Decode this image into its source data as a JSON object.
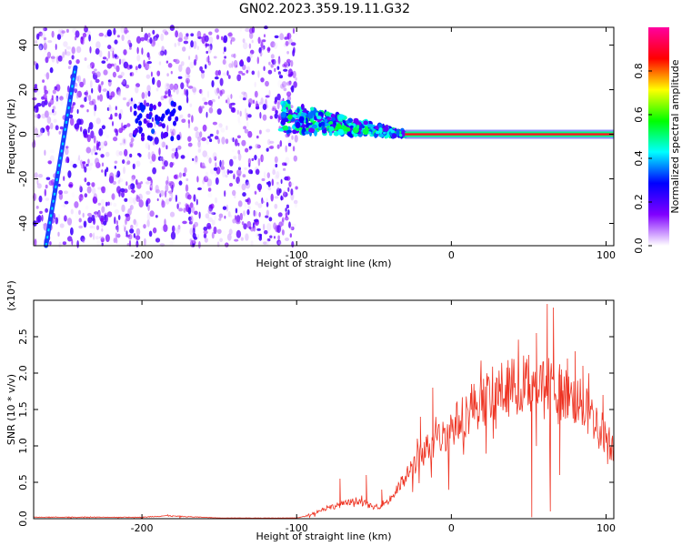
{
  "chart_data": [
    {
      "type": "heatmap",
      "title": "GN02.2023.359.19.11.G32",
      "xlabel": "Height of straight line (km)",
      "ylabel": "Frequency (Hz)",
      "xlim": [
        -270,
        105
      ],
      "ylim": [
        -50,
        48
      ],
      "x_ticks": [
        -200,
        -100,
        0,
        100
      ],
      "y_ticks": [
        -40,
        -20,
        0,
        20,
        40
      ],
      "x_tick_labels": [
        "-200",
        "-100",
        "0",
        "100"
      ],
      "y_tick_labels": [
        "-40",
        "-20",
        "0",
        "20",
        "40"
      ],
      "colorbar": {
        "label": "Normalized spectral amplitude",
        "range": [
          0,
          1
        ],
        "ticks": [
          0.0,
          0.2,
          0.4,
          0.6,
          0.8
        ],
        "tick_labels": [
          "0.0",
          "0.2",
          "0.4",
          "0.6",
          "0.8"
        ],
        "colormap": [
          "#ffffff",
          "#8000ff",
          "#0000ff",
          "#00ffff",
          "#00ff00",
          "#ffff00",
          "#ff0000",
          "#ff00a0"
        ]
      },
      "features": {
        "noise_region_x": [
          -270,
          -100
        ],
        "drift_line": {
          "x": [
            -262,
            -243
          ],
          "freq": [
            -50,
            30
          ]
        },
        "carrier_freq": 0,
        "carrier_start_x": -30,
        "scatter_x": [
          -110,
          -30
        ]
      }
    },
    {
      "type": "line",
      "xlabel": "Height of straight line (km)",
      "ylabel": "SNR (10 * v/v)",
      "ylim_label": "(x10⁴)",
      "scale": 10000,
      "xlim": [
        -270,
        105
      ],
      "ylim": [
        0,
        3.0
      ],
      "x_ticks": [
        -200,
        -100,
        0,
        100
      ],
      "y_ticks": [
        0,
        0.5,
        1.0,
        1.5,
        2.0,
        2.5
      ],
      "x_tick_labels": [
        "-200",
        "-100",
        "0",
        "100"
      ],
      "y_tick_labels": [
        "0.0",
        "0.5",
        "1.0",
        "1.5",
        "2.0",
        "2.5"
      ],
      "series": [
        {
          "color": "#ee3322",
          "envelope": {
            "x": [
              -270,
              -200,
              -185,
              -150,
              -100,
              -95,
              -80,
              -60,
              -50,
              -40,
              -30,
              -20,
              -10,
              0,
              15,
              30,
              45,
              55,
              65,
              75,
              85,
              95,
              105
            ],
            "y": [
              0.02,
              0.02,
              0.04,
              0.01,
              0.01,
              0.03,
              0.15,
              0.25,
              0.15,
              0.25,
              0.55,
              0.9,
              1.05,
              1.25,
              1.55,
              1.75,
              1.85,
              1.85,
              1.8,
              1.7,
              1.55,
              1.3,
              0.95
            ]
          },
          "spikes": [
            {
              "x": -72,
              "y": 0.55
            },
            {
              "x": -55,
              "y": 0.6
            },
            {
              "x": -45,
              "y": 0.4
            },
            {
              "x": -24,
              "y": 0.85
            },
            {
              "x": -22,
              "y": 1.1
            },
            {
              "x": -20,
              "y": 1.4
            },
            {
              "x": -12,
              "y": 1.8
            },
            {
              "x": 13,
              "y": 1.85
            },
            {
              "x": 40,
              "y": 1.95
            },
            {
              "x": 50,
              "y": 2.25
            },
            {
              "x": 52,
              "y": 0.02
            },
            {
              "x": 55,
              "y": 2.55
            },
            {
              "x": 62,
              "y": 2.95
            },
            {
              "x": 64,
              "y": 0.1
            },
            {
              "x": 66,
              "y": 2.9
            },
            {
              "x": 70,
              "y": 0.6
            },
            {
              "x": 75,
              "y": 2.2
            },
            {
              "x": 80,
              "y": 2.3
            },
            {
              "x": 85,
              "y": 2.1
            },
            {
              "x": 98,
              "y": 1.7
            },
            {
              "x": 101,
              "y": 0.75
            }
          ]
        }
      ]
    }
  ]
}
